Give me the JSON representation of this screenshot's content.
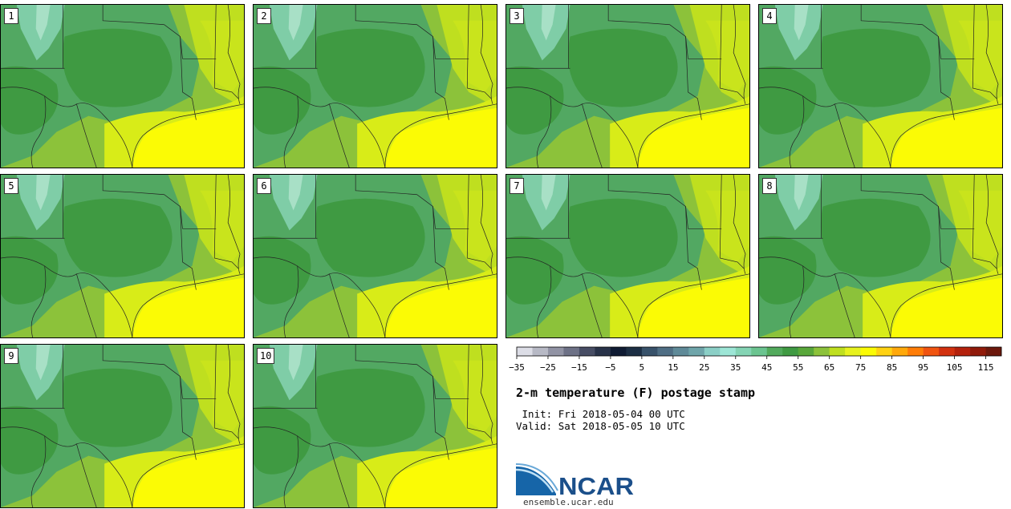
{
  "figure": {
    "title": "2-m temperature (F) postage stamp",
    "init_label": "Init:",
    "init_value": "Fri 2018-05-04 00 UTC",
    "valid_label": "Valid:",
    "valid_value": "Sat 2018-05-05 10 UTC"
  },
  "members": [
    {
      "label": "1"
    },
    {
      "label": "2"
    },
    {
      "label": "3"
    },
    {
      "label": "4"
    },
    {
      "label": "5"
    },
    {
      "label": "6"
    },
    {
      "label": "7"
    },
    {
      "label": "8"
    },
    {
      "label": "9"
    },
    {
      "label": "10"
    }
  ],
  "colorbar": {
    "colors": [
      "#dcdde6",
      "#b7b9c5",
      "#9193a4",
      "#6d7186",
      "#474d64",
      "#283249",
      "#0f1b33",
      "#1c2e44",
      "#38526a",
      "#4f6e84",
      "#5f8a98",
      "#6fa5aa",
      "#8bcfc6",
      "#9de6d6",
      "#84d4b4",
      "#6bc490",
      "#52aa5c",
      "#3f9a42",
      "#58a73a",
      "#8cc23a",
      "#bfdf1f",
      "#e7f21e",
      "#fbfb05",
      "#ffd212",
      "#ffa90b",
      "#ff7d07",
      "#f05410",
      "#d2310f",
      "#b4210c",
      "#901a0a",
      "#6c180c"
    ],
    "tick_labels": [
      "−35",
      "−25",
      "−15",
      "−5",
      "5",
      "15",
      "25",
      "35",
      "45",
      "55",
      "65",
      "75",
      "85",
      "95",
      "105",
      "115"
    ]
  },
  "logo": {
    "text": "NCAR",
    "url_text": "ensemble.ucar.edu",
    "colors": {
      "blue": "#1665a8",
      "swoosh": "#6aa9d8",
      "text": "#1b4f8a"
    }
  },
  "map_colors": {
    "cold": "#7fcda7",
    "cool": "#52a862",
    "mid": "#3f9a42",
    "warm": "#8cc23a",
    "hot": "#bfdf1f",
    "sea": "#fbfb05",
    "lines": "#222222"
  }
}
